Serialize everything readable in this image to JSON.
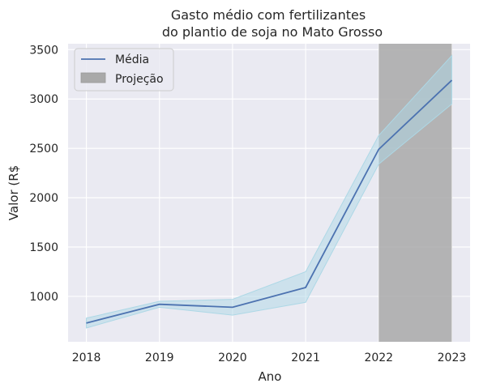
{
  "chart_data": {
    "type": "line",
    "title_lines": [
      "Gasto médio com fertilizantes",
      "do plantio de soja no Mato Grosso"
    ],
    "xlabel": "Ano",
    "ylabel": "Valor (R$",
    "x": [
      2018,
      2019,
      2020,
      2021,
      2022,
      2023
    ],
    "x_ticks": [
      "2018",
      "2019",
      "2020",
      "2021",
      "2022",
      "2023"
    ],
    "y_ticks": [
      "1000",
      "1500",
      "2000",
      "2500",
      "3000",
      "3500"
    ],
    "y_tick_values": [
      1000,
      1500,
      2000,
      2500,
      3000,
      3500
    ],
    "xlim": [
      2017.75,
      2023.25
    ],
    "ylim": [
      540,
      3560
    ],
    "series": [
      {
        "name": "Média",
        "values": [
          730,
          920,
          890,
          1090,
          2490,
          3190
        ],
        "lower": [
          680,
          890,
          810,
          940,
          2340,
          2950
        ],
        "upper": [
          780,
          950,
          970,
          1250,
          2630,
          3440
        ],
        "color": "#4c72b0",
        "band_color": "#add8e6"
      }
    ],
    "projection": {
      "name": "Projeção",
      "x_start": 2022,
      "x_end": 2023,
      "color": "#a9a9a9"
    },
    "legend_position": "upper-left",
    "grid": true,
    "background_color": "#eaeaf2"
  }
}
